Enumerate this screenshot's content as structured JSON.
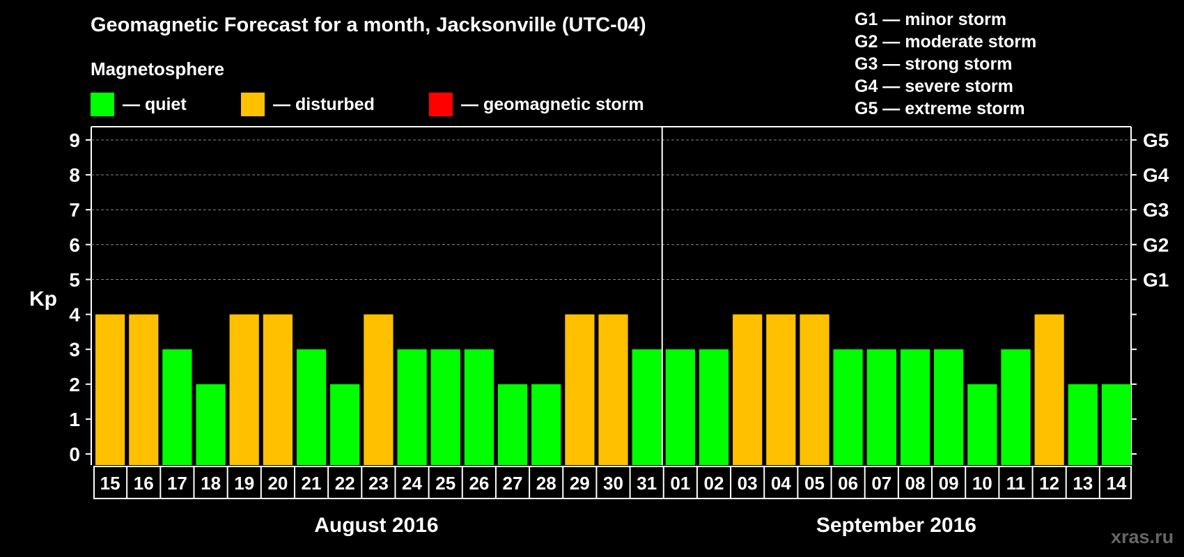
{
  "header": {
    "title": "Geomagnetic Forecast for a month, Jacksonville (UTC-04)",
    "magnetosphere_label": "Magnetosphere"
  },
  "legend": [
    {
      "label": "— quiet",
      "color": "#00ff00"
    },
    {
      "label": "— disturbed",
      "color": "#ffc000"
    },
    {
      "label": "— geomagnetic storm",
      "color": "#ff0000"
    }
  ],
  "storm_legend": [
    "G1 — minor storm",
    "G2 — moderate storm",
    "G3 — strong storm",
    "G4 — severe storm",
    "G5 — extreme storm"
  ],
  "watermark": "xras.ru",
  "chart_data": {
    "type": "bar",
    "title": "Geomagnetic Forecast for a month, Jacksonville (UTC-04)",
    "ylabel": "Kp",
    "ylim": [
      0,
      9
    ],
    "yticks": [
      0,
      1,
      2,
      3,
      4,
      5,
      6,
      7,
      8,
      9
    ],
    "right_axis_labels": [
      {
        "kp": 5,
        "label": "G1"
      },
      {
        "kp": 6,
        "label": "G2"
      },
      {
        "kp": 7,
        "label": "G3"
      },
      {
        "kp": 8,
        "label": "G4"
      },
      {
        "kp": 9,
        "label": "G5"
      }
    ],
    "categories": [
      "15",
      "16",
      "17",
      "18",
      "19",
      "20",
      "21",
      "22",
      "23",
      "24",
      "25",
      "26",
      "27",
      "28",
      "29",
      "30",
      "31",
      "01",
      "02",
      "03",
      "04",
      "05",
      "06",
      "07",
      "08",
      "09",
      "10",
      "11",
      "12",
      "13",
      "14"
    ],
    "values": [
      4,
      4,
      3,
      2,
      4,
      4,
      3,
      2,
      4,
      3,
      3,
      3,
      2,
      2,
      4,
      4,
      3,
      3,
      3,
      4,
      4,
      4,
      3,
      3,
      3,
      3,
      2,
      3,
      4,
      2,
      2
    ],
    "status": [
      "disturbed",
      "disturbed",
      "quiet",
      "quiet",
      "disturbed",
      "disturbed",
      "quiet",
      "quiet",
      "disturbed",
      "quiet",
      "quiet",
      "quiet",
      "quiet",
      "quiet",
      "disturbed",
      "disturbed",
      "quiet",
      "quiet",
      "quiet",
      "disturbed",
      "disturbed",
      "disturbed",
      "quiet",
      "quiet",
      "quiet",
      "quiet",
      "quiet",
      "quiet",
      "disturbed",
      "quiet",
      "quiet"
    ],
    "status_colors": {
      "quiet": "#00ff00",
      "disturbed": "#ffc000",
      "storm": "#ff0000"
    },
    "months": [
      {
        "label": "August 2016",
        "count": 17
      },
      {
        "label": "September 2016",
        "count": 14
      }
    ],
    "grid": true
  }
}
